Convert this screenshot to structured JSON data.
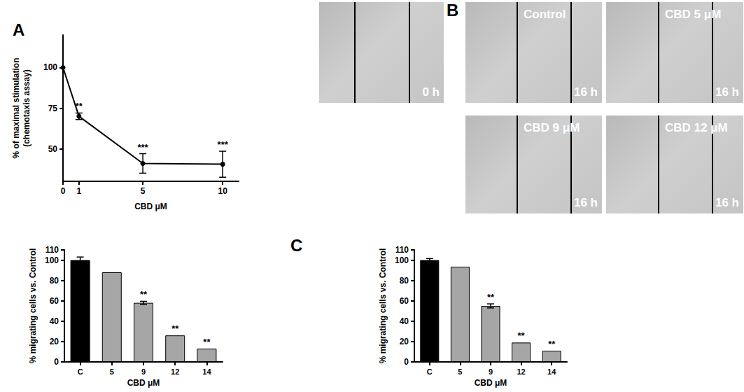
{
  "chart_data": [
    {
      "type": "line",
      "x": [
        0,
        1,
        5,
        10
      ],
      "values": [
        100,
        70,
        41,
        40.5
      ],
      "errors": [
        0,
        2,
        6,
        8
      ],
      "significance": [
        null,
        "**",
        "***",
        "***"
      ],
      "xlabel": "CBD μM",
      "ylabel": "% of maximal stimulation\n(chemotaxis assay)",
      "xlim": [
        0,
        11
      ],
      "xticks": [
        0,
        1,
        5,
        10
      ],
      "ylim": [
        30,
        120
      ],
      "yticks": [
        50,
        75,
        100
      ],
      "color": "#000000",
      "marker": "circle",
      "grid": false
    },
    {
      "type": "bar",
      "categories": [
        "C",
        "5",
        "9",
        "12",
        "14"
      ],
      "values": [
        100,
        88,
        58,
        26,
        13
      ],
      "errors": [
        3,
        0,
        1.5,
        0,
        0
      ],
      "significance": [
        null,
        null,
        "**",
        "**",
        "**"
      ],
      "colors": [
        "#000000",
        "#a6a6a6",
        "#a6a6a6",
        "#a6a6a6",
        "#a6a6a6"
      ],
      "xlabel": "CBD μM",
      "ylabel": "% migrating cells vs. Control",
      "ylim": [
        0,
        110
      ],
      "yticks": [
        0,
        20,
        40,
        60,
        80,
        100
      ],
      "grid": false
    },
    {
      "type": "bar",
      "categories": [
        "C",
        "5",
        "9",
        "12",
        "14"
      ],
      "values": [
        100,
        93.5,
        55,
        19,
        11
      ],
      "errors": [
        1.5,
        0,
        2,
        0,
        0
      ],
      "significance": [
        null,
        null,
        "**",
        "**",
        "**"
      ],
      "colors": [
        "#000000",
        "#a6a6a6",
        "#a6a6a6",
        "#a6a6a6",
        "#a6a6a6"
      ],
      "xlabel": "CBD μM",
      "ylabel": "% migrating cells vs. Control",
      "ylim": [
        0,
        110
      ],
      "yticks": [
        0,
        20,
        40,
        60,
        80,
        100
      ],
      "grid": false
    }
  ],
  "panel_labels": [
    "A",
    "B",
    "C"
  ],
  "micrographs": [
    {
      "time": "0 h"
    },
    {
      "treatment": "Control",
      "time": "16 h"
    },
    {
      "treatment": "CBD 5 μM",
      "time": "16 h"
    },
    {
      "treatment": "CBD 9 μM",
      "time": "16 h"
    },
    {
      "treatment": "CBD 12 μM",
      "time": "16 h"
    }
  ]
}
